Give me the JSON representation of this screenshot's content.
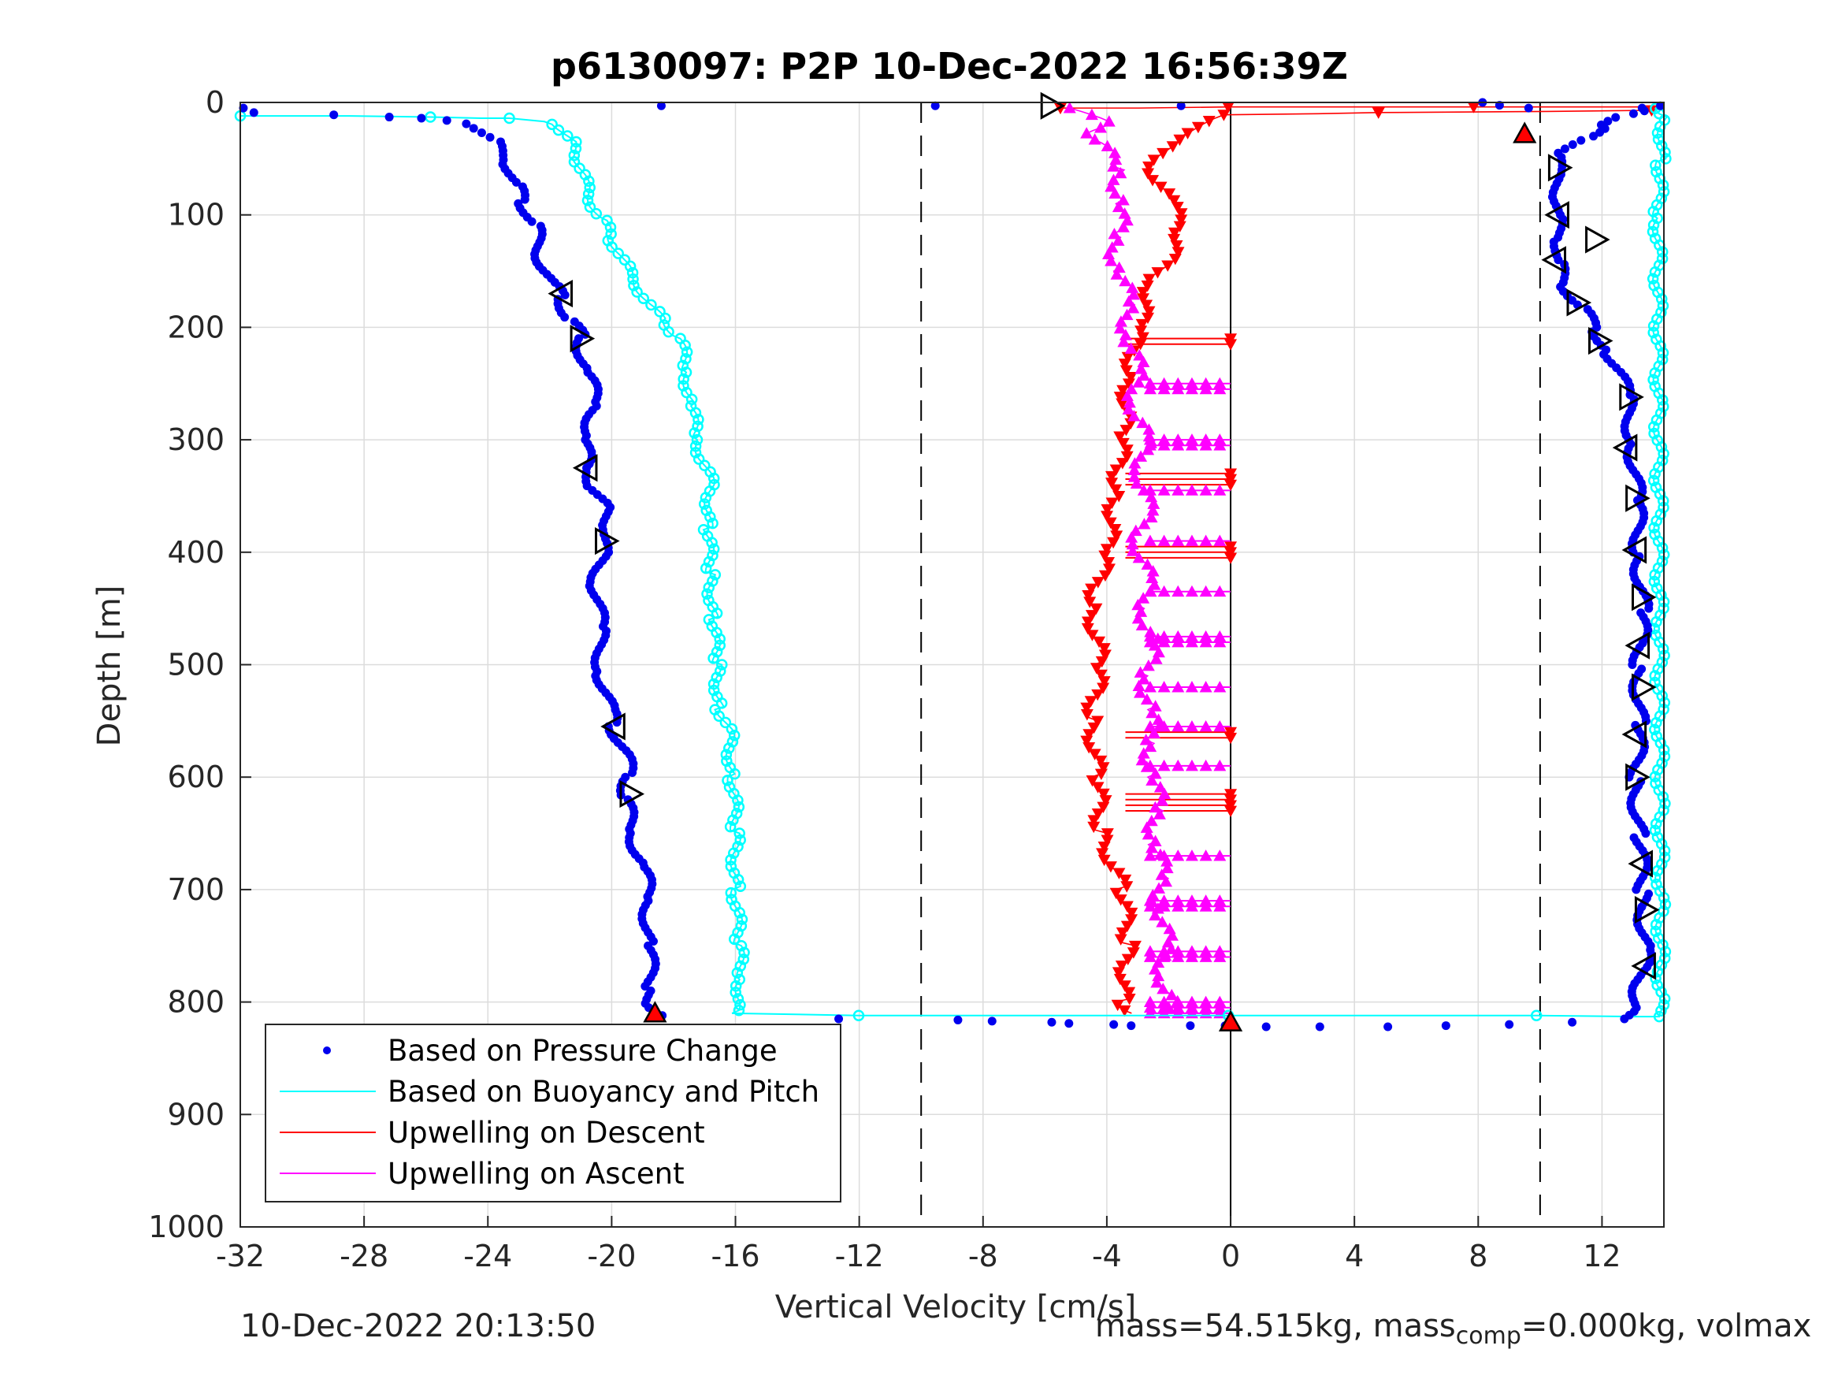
{
  "chart_data": {
    "type": "scatter",
    "title": "p6130097: P2P 10-Dec-2022 16:56:39Z",
    "xlabel": "Vertical Velocity [cm/s]",
    "ylabel": "Depth [m]",
    "xlim": [
      -32,
      14
    ],
    "ylim": [
      0,
      1000
    ],
    "y_reversed": true,
    "grid": true,
    "xticks": [
      -32,
      -28,
      -24,
      -20,
      -16,
      -12,
      -8,
      -4,
      0,
      4,
      8,
      12
    ],
    "yticks": [
      0,
      100,
      200,
      300,
      400,
      500,
      600,
      700,
      800,
      900,
      1000
    ],
    "reference_lines": [
      {
        "x": -10,
        "style": "dashed"
      },
      {
        "x": 10,
        "style": "dashed"
      },
      {
        "x": 0,
        "style": "solid"
      }
    ],
    "legend_position": "bottom-left",
    "colors": {
      "pressure": "#0000ee",
      "buoyancy": "#00ffff",
      "descent": "#ff0000",
      "ascent": "#ff00ff"
    },
    "series": [
      {
        "name": "Based on Pressure Change",
        "marker": "dot",
        "points": [
          [
            -31.9,
            5
          ],
          [
            -31.6,
            9
          ],
          [
            -28.9,
            11
          ],
          [
            -27.3,
            13
          ],
          [
            -26,
            14
          ],
          [
            -25.5,
            16
          ],
          [
            -24.5,
            19
          ],
          [
            -23.8,
            35
          ],
          [
            -23.3,
            55
          ],
          [
            -23.1,
            75
          ],
          [
            -22.8,
            90
          ],
          [
            -22.5,
            110
          ],
          [
            -22.3,
            135
          ],
          [
            -22,
            160
          ],
          [
            -21.6,
            175
          ],
          [
            -21.3,
            195
          ],
          [
            -21,
            210
          ],
          [
            -20.8,
            240
          ],
          [
            -20.5,
            270
          ],
          [
            -20.8,
            300
          ],
          [
            -20.9,
            325
          ],
          [
            -20.5,
            345
          ],
          [
            -20.2,
            360
          ],
          [
            -20.1,
            380
          ],
          [
            -20.3,
            400
          ],
          [
            -20.5,
            430
          ],
          [
            -20.4,
            470
          ],
          [
            -20.3,
            510
          ],
          [
            -20.1,
            540
          ],
          [
            -19.9,
            555
          ],
          [
            -19.6,
            580
          ],
          [
            -19.4,
            600
          ],
          [
            -19.6,
            620
          ],
          [
            -19.3,
            650
          ],
          [
            -19,
            680
          ],
          [
            -18.8,
            710
          ],
          [
            -18.8,
            750
          ],
          [
            -18.8,
            790
          ],
          [
            -18.7,
            805
          ],
          [
            -18.5,
            812
          ],
          [
            -12.5,
            815
          ],
          [
            -9.0,
            816
          ],
          [
            -7.5,
            817
          ],
          [
            -6,
            818
          ],
          [
            -5,
            819
          ],
          [
            -4,
            820
          ],
          [
            -3,
            821
          ],
          [
            -1.5,
            821
          ],
          [
            0,
            821
          ],
          [
            1,
            822
          ],
          [
            3,
            822
          ],
          [
            5,
            822
          ],
          [
            7,
            821
          ],
          [
            9,
            820
          ],
          [
            11,
            818
          ],
          [
            12.8,
            815
          ],
          [
            13,
            805
          ],
          [
            13.3,
            780
          ],
          [
            13.4,
            750
          ],
          [
            13.3,
            700
          ],
          [
            13.2,
            650
          ],
          [
            13.1,
            600
          ],
          [
            13.2,
            550
          ],
          [
            13.2,
            500
          ],
          [
            13.3,
            450
          ],
          [
            13.2,
            400
          ],
          [
            13.1,
            350
          ],
          [
            13,
            300
          ],
          [
            12.8,
            260
          ],
          [
            12.2,
            220
          ],
          [
            11.8,
            200
          ],
          [
            11.2,
            180
          ],
          [
            10.8,
            160
          ],
          [
            10.5,
            140
          ],
          [
            10.7,
            120
          ],
          [
            10.5,
            100
          ],
          [
            10.6,
            80
          ],
          [
            10.5,
            60
          ],
          [
            10.8,
            45
          ],
          [
            11.5,
            30
          ],
          [
            12.2,
            20
          ],
          [
            12.8,
            10
          ],
          [
            13.5,
            5
          ],
          [
            13.7,
            3
          ],
          [
            8.3,
            0
          ],
          [
            9.5,
            5
          ],
          [
            -18.3,
            3
          ],
          [
            -9.6,
            3
          ],
          [
            -1.6,
            3
          ]
        ]
      },
      {
        "name": "Based on Buoyancy and Pitch",
        "marker": "line",
        "points": [
          [
            -32,
            12
          ],
          [
            -28.5,
            12
          ],
          [
            -25.8,
            13
          ],
          [
            -24.3,
            14
          ],
          [
            -23.2,
            14
          ],
          [
            -22.3,
            17
          ],
          [
            -21.7,
            22
          ],
          [
            -21.3,
            35
          ],
          [
            -21.1,
            50
          ],
          [
            -20.9,
            70
          ],
          [
            -20.6,
            90
          ],
          [
            -20.3,
            105
          ],
          [
            -20,
            120
          ],
          [
            -19.7,
            140
          ],
          [
            -19.2,
            160
          ],
          [
            -18.8,
            180
          ],
          [
            -18.3,
            195
          ],
          [
            -17.8,
            210
          ],
          [
            -17.6,
            240
          ],
          [
            -17.4,
            270
          ],
          [
            -17.3,
            300
          ],
          [
            -17,
            320
          ],
          [
            -16.8,
            340
          ],
          [
            -16.9,
            380
          ],
          [
            -16.8,
            420
          ],
          [
            -16.7,
            460
          ],
          [
            -16.6,
            500
          ],
          [
            -16.5,
            540
          ],
          [
            -16.2,
            560
          ],
          [
            -16.1,
            600
          ],
          [
            -16,
            650
          ],
          [
            -16,
            700
          ],
          [
            -15.9,
            750
          ],
          [
            -15.8,
            780
          ],
          [
            -15.9,
            800
          ],
          [
            -16.1,
            810
          ],
          [
            -12,
            812
          ],
          [
            -6,
            812
          ],
          [
            0,
            812
          ],
          [
            6,
            812
          ],
          [
            10,
            812
          ],
          [
            13,
            813
          ],
          [
            14,
            813
          ],
          [
            13.9,
            800
          ],
          [
            13.8,
            100
          ],
          [
            13.9,
            50
          ],
          [
            14,
            10
          ],
          [
            13.8,
            3
          ]
        ]
      },
      {
        "name": "Upwelling on Descent",
        "marker": "triangle-down",
        "points": [
          [
            -5.5,
            5
          ],
          [
            -3,
            5
          ],
          [
            0,
            4
          ],
          [
            3,
            4
          ],
          [
            8,
            4
          ],
          [
            13.8,
            4
          ],
          [
            13.8,
            7
          ],
          [
            10,
            8
          ],
          [
            5,
            9
          ],
          [
            2.6,
            10
          ],
          [
            0,
            11
          ],
          [
            -1.8,
            30
          ],
          [
            -2.5,
            60
          ],
          [
            -2,
            90
          ],
          [
            -1.5,
            110
          ],
          [
            -1.8,
            130
          ],
          [
            -2.5,
            160
          ],
          [
            -3,
            200
          ],
          [
            -3.3,
            250
          ],
          [
            -3.5,
            300
          ],
          [
            -3.7,
            350
          ],
          [
            -4,
            400
          ],
          [
            -4.5,
            450
          ],
          [
            -4.2,
            500
          ],
          [
            -4.5,
            550
          ],
          [
            -4.3,
            600
          ],
          [
            -4.2,
            650
          ],
          [
            -3.5,
            700
          ],
          [
            -3.3,
            750
          ],
          [
            -3.5,
            800
          ],
          [
            -3.2,
            810
          ]
        ],
        "horizontal_band_depths": [
          210,
          215,
          330,
          335,
          340,
          395,
          400,
          405,
          560,
          565,
          615,
          620,
          625,
          630
        ]
      },
      {
        "name": "Upwelling on Ascent",
        "marker": "triangle-up",
        "points": [
          [
            -5.2,
            5
          ],
          [
            -4,
            20
          ],
          [
            -4.5,
            30
          ],
          [
            -3.6,
            60
          ],
          [
            -3.5,
            90
          ],
          [
            -3.8,
            120
          ],
          [
            -3.5,
            150
          ],
          [
            -3.4,
            180
          ],
          [
            -3.2,
            210
          ],
          [
            -3.1,
            240
          ],
          [
            -3,
            270
          ],
          [
            -2.9,
            300
          ],
          [
            -2.8,
            330
          ],
          [
            -2.8,
            360
          ],
          [
            -2.9,
            390
          ],
          [
            -2.8,
            420
          ],
          [
            -2.7,
            450
          ],
          [
            -2.6,
            480
          ],
          [
            -2.7,
            510
          ],
          [
            -2.6,
            540
          ],
          [
            -2.6,
            570
          ],
          [
            -2.5,
            600
          ],
          [
            -2.4,
            630
          ],
          [
            -2.4,
            660
          ],
          [
            -2.3,
            690
          ],
          [
            -2.2,
            720
          ],
          [
            -2.2,
            750
          ],
          [
            -2.1,
            780
          ],
          [
            -2.0,
            805
          ]
        ],
        "horizontal_band_depths": [
          250,
          255,
          300,
          305,
          345,
          390,
          435,
          475,
          480,
          520,
          555,
          590,
          670,
          710,
          715,
          755,
          760,
          800,
          805,
          810
        ]
      }
    ],
    "annotation_markers": [
      {
        "type": "right",
        "x": -5.8,
        "y": 3
      },
      {
        "type": "left",
        "x": -21.6,
        "y": 170
      },
      {
        "type": "right",
        "x": -21,
        "y": 210
      },
      {
        "type": "left",
        "x": -20.8,
        "y": 325
      },
      {
        "type": "right",
        "x": -20.2,
        "y": 390
      },
      {
        "type": "left",
        "x": -19.9,
        "y": 555
      },
      {
        "type": "right",
        "x": -19.4,
        "y": 615
      },
      {
        "type": "up-red",
        "x": -18.6,
        "y": 810
      },
      {
        "type": "up-red",
        "x": 0,
        "y": 818
      },
      {
        "type": "up-red",
        "x": 9.5,
        "y": 28
      },
      {
        "type": "right",
        "x": 10.6,
        "y": 58
      },
      {
        "type": "left",
        "x": 10.6,
        "y": 100
      },
      {
        "type": "right",
        "x": 11.8,
        "y": 122
      },
      {
        "type": "left",
        "x": 10.5,
        "y": 140
      },
      {
        "type": "right",
        "x": 11.2,
        "y": 178
      },
      {
        "type": "right",
        "x": 11.9,
        "y": 212
      },
      {
        "type": "right",
        "x": 12.9,
        "y": 262
      },
      {
        "type": "left",
        "x": 12.8,
        "y": 307
      },
      {
        "type": "right",
        "x": 13.1,
        "y": 352
      },
      {
        "type": "left",
        "x": 13.1,
        "y": 398
      },
      {
        "type": "right",
        "x": 13.3,
        "y": 440
      },
      {
        "type": "left",
        "x": 13.2,
        "y": 483
      },
      {
        "type": "right",
        "x": 13.3,
        "y": 520
      },
      {
        "type": "left",
        "x": 13.1,
        "y": 562
      },
      {
        "type": "right",
        "x": 13.1,
        "y": 600
      },
      {
        "type": "left",
        "x": 13.3,
        "y": 677
      },
      {
        "type": "right",
        "x": 13.4,
        "y": 718
      },
      {
        "type": "left",
        "x": 13.4,
        "y": 768
      }
    ]
  },
  "footer": {
    "timestamp": "10-Dec-2022 20:13:50",
    "mass_text_1": "mass=54.515kg, mass",
    "mass_sub": "comp",
    "mass_text_2": "=0.000kg, volmax"
  }
}
